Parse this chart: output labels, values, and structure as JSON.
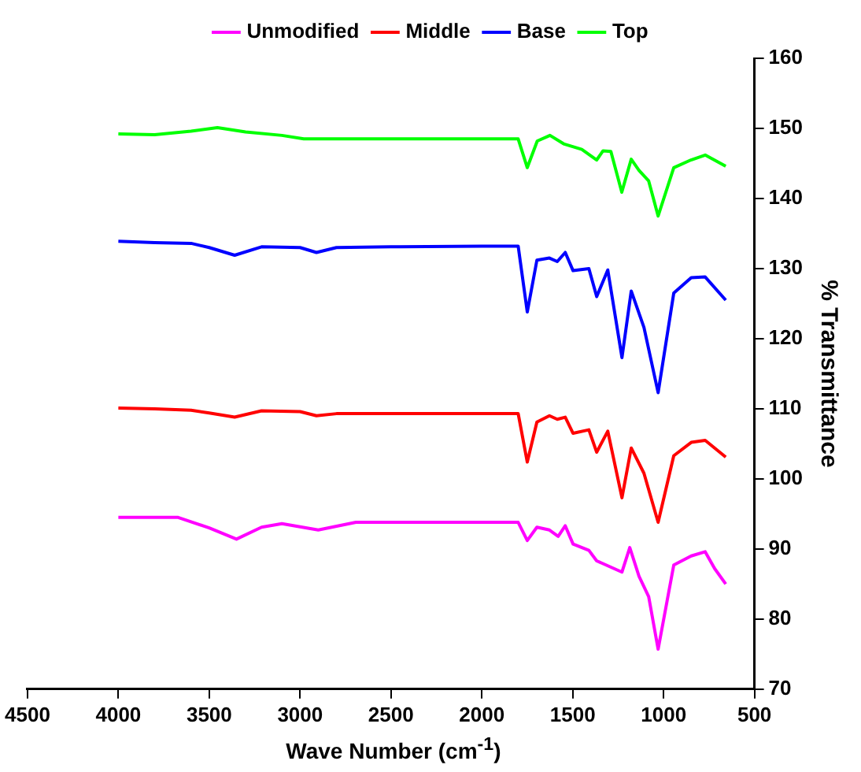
{
  "chart_data": {
    "type": "line",
    "xlabel": "Wave Number (cm$^{-1}$)",
    "ylabel": "% Transmittance",
    "xlim": [
      4500,
      500
    ],
    "xticks": [
      4500,
      4000,
      3500,
      3000,
      2500,
      2000,
      1500,
      1000,
      500
    ],
    "ylim": [
      70,
      160
    ],
    "yticks": [
      70,
      80,
      90,
      100,
      110,
      120,
      130,
      140,
      150,
      160
    ],
    "grid": false,
    "legend": "top",
    "marker": "none",
    "line_style": "solid",
    "series": [
      {
        "name": "Unmodified",
        "color": "#ff00ff",
        "x": [
          4000,
          3671,
          3500,
          3350,
          3212,
          3100,
          2900,
          2693,
          2000,
          1800,
          1750,
          1697,
          1628,
          1580,
          1541,
          1498,
          1411,
          1368,
          1229,
          1186,
          1135,
          1082,
          1030,
          944,
          848,
          771,
          719,
          658
        ],
        "values": [
          94.5,
          94.5,
          93.0,
          91.4,
          93.1,
          93.6,
          92.7,
          93.8,
          93.8,
          93.8,
          91.2,
          93.1,
          92.7,
          91.8,
          93.3,
          90.7,
          89.8,
          88.3,
          86.7,
          90.2,
          86.1,
          83.2,
          75.7,
          87.7,
          89.0,
          89.6,
          87.2,
          85.0
        ]
      },
      {
        "name": "Middle",
        "color": "#ff0000",
        "x": [
          4000,
          3800,
          3600,
          3500,
          3360,
          3212,
          3000,
          2910,
          2800,
          2500,
          2000,
          1800,
          1750,
          1697,
          1628,
          1585,
          1541,
          1498,
          1411,
          1368,
          1307,
          1229,
          1178,
          1108,
          1030,
          944,
          848,
          771,
          658
        ],
        "values": [
          110.1,
          110.0,
          109.8,
          109.4,
          108.8,
          109.7,
          109.6,
          109.0,
          109.3,
          109.3,
          109.3,
          109.3,
          102.4,
          108.1,
          109.0,
          108.5,
          108.8,
          106.5,
          107.0,
          103.8,
          106.8,
          97.3,
          104.4,
          100.8,
          93.8,
          103.3,
          105.2,
          105.5,
          103.1
        ]
      },
      {
        "name": "Base",
        "color": "#0000ff",
        "x": [
          4000,
          3800,
          3600,
          3500,
          3360,
          3212,
          3000,
          2910,
          2800,
          2500,
          2000,
          1800,
          1750,
          1697,
          1628,
          1585,
          1541,
          1498,
          1411,
          1368,
          1307,
          1229,
          1178,
          1108,
          1030,
          944,
          848,
          771,
          658
        ],
        "values": [
          133.9,
          133.7,
          133.6,
          133.0,
          131.9,
          133.1,
          133.0,
          132.3,
          133.0,
          133.1,
          133.2,
          133.2,
          123.8,
          131.2,
          131.5,
          131.0,
          132.3,
          129.7,
          130.0,
          126.0,
          129.8,
          117.3,
          126.8,
          121.6,
          112.3,
          126.5,
          128.7,
          128.8,
          125.5
        ]
      },
      {
        "name": "Top",
        "color": "#00ff00",
        "x": [
          4000,
          3800,
          3600,
          3455,
          3300,
          3100,
          2980,
          2500,
          2000,
          1800,
          1750,
          1695,
          1625,
          1550,
          1450,
          1368,
          1333,
          1290,
          1230,
          1178,
          1135,
          1082,
          1030,
          944,
          849,
          771,
          658
        ],
        "values": [
          149.2,
          149.1,
          149.6,
          150.1,
          149.5,
          149.0,
          148.5,
          148.5,
          148.5,
          148.5,
          144.4,
          148.2,
          149.0,
          147.8,
          147.0,
          145.5,
          146.8,
          146.7,
          140.9,
          145.6,
          144.0,
          142.5,
          137.5,
          144.4,
          145.5,
          146.2,
          144.6
        ]
      }
    ]
  }
}
